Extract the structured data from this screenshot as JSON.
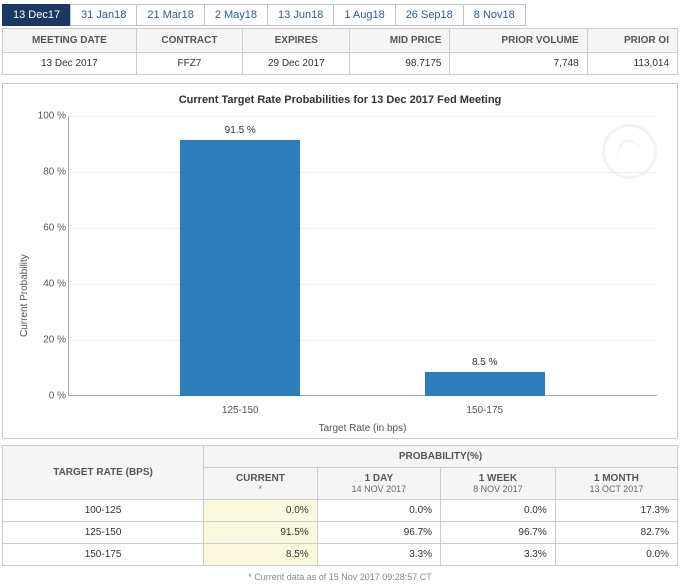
{
  "tabs": [
    "13 Dec17",
    "31 Jan18",
    "21 Mar18",
    "2 May18",
    "13 Jun18",
    "1 Aug18",
    "26 Sep18",
    "8 Nov18"
  ],
  "active_tab": 0,
  "meeting": {
    "headers": [
      "MEETING DATE",
      "CONTRACT",
      "EXPIRES",
      "MID PRICE",
      "PRIOR VOLUME",
      "PRIOR OI"
    ],
    "row": [
      "13 Dec 2017",
      "FFZ7",
      "29 Dec 2017",
      "98.7175",
      "7,748",
      "113,014"
    ]
  },
  "chart": {
    "title": "Current Target Rate Probabilities for 13 Dec 2017 Fed Meeting",
    "ylabel": "Current Probability",
    "xlabel": "Target Rate (in bps)",
    "ylim": [
      0,
      100
    ],
    "ytick_step": 20,
    "bar_color": "#2e7cb8",
    "categories": [
      "125-150",
      "150-175"
    ],
    "values": [
      91.5,
      8.5
    ],
    "value_labels": [
      "91.5 %",
      "8.5 %"
    ]
  },
  "prob": {
    "row_header": "TARGET RATE (BPS)",
    "group_header": "PROBABILITY(%)",
    "cols": [
      {
        "h": "CURRENT",
        "s": "*"
      },
      {
        "h": "1 DAY",
        "s": "14 NOV 2017"
      },
      {
        "h": "1 WEEK",
        "s": "8 NOV 2017"
      },
      {
        "h": "1 MONTH",
        "s": "13 OCT 2017"
      }
    ],
    "rows": [
      {
        "label": "100-125",
        "v": [
          "0.0%",
          "0.0%",
          "0.0%",
          "17.3%"
        ]
      },
      {
        "label": "125-150",
        "v": [
          "91.5%",
          "96.7%",
          "96.7%",
          "82.7%"
        ]
      },
      {
        "label": "150-175",
        "v": [
          "8.5%",
          "3.3%",
          "3.3%",
          "0.0%"
        ]
      }
    ]
  },
  "footnote": "* Current data as of 15 Nov 2017 09:28:57 CT"
}
